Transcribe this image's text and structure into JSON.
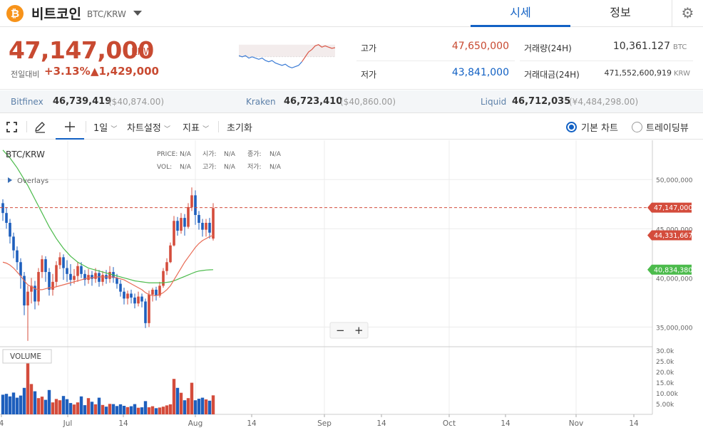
{
  "header": {
    "coin_logo": "₿",
    "coin_name": "비트코인",
    "coin_pair": "BTC/KRW",
    "tabs": [
      {
        "label": "시세"
      },
      {
        "label": "정보"
      }
    ],
    "settings_icon": "gear-icon"
  },
  "summary": {
    "price": "47,147,000",
    "unit": "KRW",
    "change_label": "전일대비",
    "change_pct": "+3.13%",
    "change_amt": "▲1,429,000",
    "high_label": "고가",
    "high": "47,650,000",
    "low_label": "저가",
    "low": "43,841,000",
    "volume_label": "거래량(24H)",
    "volume": "10,361.127",
    "volume_unit": "BTC",
    "amount_label": "거래대금(24H)",
    "amount": "471,552,600,919",
    "amount_unit": "KRW"
  },
  "exchanges": [
    {
      "name": "Bitfinex",
      "price": "46,739,419",
      "fiat": "($40,874.00)"
    },
    {
      "name": "Kraken",
      "price": "46,723,410",
      "fiat": "($40,860.00)"
    },
    {
      "name": "Liquid",
      "price": "46,712,035",
      "fiat": "(¥4,484,298.00)"
    }
  ],
  "toolbar": {
    "interval": "1일",
    "chart_settings": "차트설정",
    "indicators": "지표",
    "reset": "초기화",
    "basic_chart": "기본 차트",
    "tradingview": "트레이딩뷰"
  },
  "chart": {
    "symbol": "BTC/KRW",
    "overlays": "Overlays",
    "info": {
      "price_label": "PRICE:",
      "price": "N/A",
      "open_label": "시가:",
      "open": "N/A",
      "close_label": "종가:",
      "close": "N/A",
      "vol_label": "VOL:",
      "vol": "N/A",
      "high_label": "고가:",
      "high": "N/A",
      "low_label": "저가:",
      "low": "N/A"
    },
    "price_ticks": [
      "50,000,000",
      "45,000,000",
      "40,000,000",
      "35,000,000"
    ],
    "price_tick_values": [
      50000000,
      45000000,
      40000000,
      35000000
    ],
    "current_price_tag": "47,147,000",
    "current_price_value": 47147000,
    "ma_short_tag": "44,331,667",
    "ma_short_value": 44331667,
    "ma_long_tag": "40,834,380",
    "ma_long_value": 40834380,
    "volume_label": "VOLUME",
    "volume_ticks": [
      "30.0k",
      "25.0k",
      "20.0k",
      "15.0k",
      "10.00k",
      "5.00k"
    ],
    "volume_tick_values": [
      30000,
      25000,
      20000,
      15000,
      10000,
      5000
    ],
    "x_ticks": [
      "4",
      "Jul",
      "14",
      "Aug",
      "14",
      "Sep",
      "14",
      "Oct",
      "14",
      "Nov",
      "14"
    ],
    "zoom_minus": "−",
    "zoom_plus": "+",
    "colors": {
      "up": "#d44c3c",
      "down": "#1e5fbd",
      "ma_short": "#e86b55",
      "ma_long": "#4cbb4c",
      "current": "#d44c3c"
    }
  },
  "chart_data": {
    "type": "candlestick",
    "note_series": [
      "candles",
      "volume",
      "ma_short",
      "ma_long"
    ],
    "candles": [
      [
        47.6,
        46.6,
        48.0,
        45.8
      ],
      [
        46.6,
        45.6,
        47.2,
        45.0
      ],
      [
        45.6,
        44.2,
        46.0,
        43.5
      ],
      [
        44.2,
        42.8,
        44.6,
        42.0
      ],
      [
        42.8,
        41.6,
        43.2,
        40.8
      ],
      [
        41.6,
        40.2,
        42.0,
        38.9
      ],
      [
        40.2,
        37.2,
        40.6,
        36.2
      ],
      [
        37.2,
        38.6,
        39.2,
        33.6
      ],
      [
        38.6,
        39.2,
        40.0,
        37.4
      ],
      [
        39.2,
        37.6,
        39.7,
        36.8
      ],
      [
        37.6,
        40.6,
        41.0,
        37.2
      ],
      [
        40.6,
        41.9,
        42.3,
        40.0
      ],
      [
        41.9,
        40.6,
        42.2,
        39.6
      ],
      [
        40.6,
        38.8,
        41.0,
        38.2
      ],
      [
        38.8,
        39.6,
        40.4,
        38.2
      ],
      [
        39.6,
        41.3,
        41.7,
        39.1
      ],
      [
        41.3,
        42.1,
        42.6,
        40.9
      ],
      [
        42.1,
        41.0,
        42.4,
        39.8
      ],
      [
        41.0,
        40.4,
        41.8,
        39.6
      ],
      [
        40.4,
        39.8,
        41.4,
        39.2
      ],
      [
        39.8,
        40.2,
        40.9,
        39.4
      ],
      [
        40.2,
        41.2,
        41.6,
        39.6
      ],
      [
        41.2,
        40.4,
        41.6,
        40.0
      ],
      [
        40.4,
        39.8,
        40.8,
        39.2
      ],
      [
        39.8,
        40.3,
        40.9,
        39.4
      ],
      [
        40.3,
        39.9,
        40.7,
        39.2
      ],
      [
        39.9,
        40.5,
        41.0,
        39.5
      ],
      [
        40.5,
        39.6,
        40.8,
        39.1
      ],
      [
        39.6,
        40.3,
        40.7,
        39.2
      ],
      [
        40.3,
        39.9,
        40.8,
        39.4
      ],
      [
        39.9,
        40.6,
        41.2,
        39.5
      ],
      [
        40.6,
        40.0,
        41.1,
        39.5
      ],
      [
        40.0,
        39.4,
        40.4,
        38.9
      ],
      [
        39.4,
        38.6,
        39.8,
        38.1
      ],
      [
        38.6,
        37.9,
        39.0,
        37.3
      ],
      [
        37.9,
        38.4,
        38.7,
        37.3
      ],
      [
        38.4,
        38.0,
        38.8,
        37.4
      ],
      [
        38.0,
        37.4,
        38.4,
        36.9
      ],
      [
        37.4,
        38.1,
        38.6,
        37.1
      ],
      [
        38.1,
        37.6,
        38.4,
        37.0
      ],
      [
        37.6,
        35.4,
        37.9,
        34.9
      ],
      [
        35.4,
        38.3,
        38.7,
        35.0
      ],
      [
        38.3,
        38.8,
        39.0,
        37.6
      ],
      [
        38.8,
        38.2,
        39.1,
        37.7
      ],
      [
        38.2,
        39.2,
        39.6,
        38.0
      ],
      [
        39.2,
        40.7,
        41.0,
        39.0
      ],
      [
        40.7,
        41.6,
        42.0,
        40.3
      ],
      [
        41.6,
        43.3,
        43.6,
        41.5
      ],
      [
        43.3,
        45.8,
        46.3,
        43.2
      ],
      [
        45.8,
        44.8,
        46.2,
        44.3
      ],
      [
        44.8,
        46.1,
        46.6,
        44.5
      ],
      [
        46.1,
        45.2,
        46.5,
        44.3
      ],
      [
        45.2,
        47.2,
        47.6,
        45.0
      ],
      [
        47.2,
        48.4,
        49.2,
        46.8
      ],
      [
        48.4,
        46.4,
        48.9,
        45.4
      ],
      [
        46.4,
        45.6,
        46.8,
        44.9
      ],
      [
        45.6,
        44.9,
        46.0,
        44.2
      ],
      [
        44.9,
        45.6,
        46.0,
        44.2
      ],
      [
        45.6,
        44.6,
        46.1,
        44.0
      ],
      [
        44.0,
        47.1,
        47.6,
        43.8
      ]
    ],
    "volume": [
      9.2,
      9.6,
      8.4,
      10.2,
      7.8,
      8.8,
      12.4,
      29.4,
      14.2,
      10.8,
      7.6,
      8.3,
      6.8,
      11.4,
      5.6,
      7.2,
      6.6,
      8.6,
      7.1,
      5.3,
      4.6,
      5.6,
      8.4,
      4.3,
      7.6,
      5.9,
      4.7,
      7.8,
      4.4,
      3.6,
      4.9,
      4.8,
      3.9,
      4.7,
      4.0,
      3.4,
      3.8,
      4.8,
      3.1,
      3.3,
      6.2,
      3.3,
      3.8,
      2.9,
      3.2,
      3.6,
      4.2,
      4.7,
      16.6,
      12.4,
      10.1,
      6.6,
      7.6,
      14.8,
      6.6,
      7.3,
      7.8,
      7.0,
      6.4,
      8.9
    ],
    "ma_short": [
      41.6,
      41.5,
      41.3,
      41.0,
      40.6,
      40.2,
      39.7,
      39.3,
      39.1,
      38.9,
      38.8,
      38.8,
      38.9,
      39.0,
      39.0,
      39.1,
      39.2,
      39.3,
      39.4,
      39.5,
      39.6,
      39.7,
      39.8,
      39.9,
      40.0,
      40.0,
      40.1,
      40.1,
      40.1,
      40.1,
      40.1,
      40.1,
      40.0,
      39.9,
      39.8,
      39.6,
      39.4,
      39.2,
      39.0,
      38.8,
      38.5,
      38.3,
      38.2,
      38.2,
      38.3,
      38.5,
      38.8,
      39.2,
      39.8,
      40.4,
      41.0,
      41.6,
      42.1,
      42.6,
      43.1,
      43.5,
      43.8,
      44.0,
      44.2,
      44.33
    ],
    "ma_long": [
      53.0,
      52.6,
      52.2,
      51.7,
      51.2,
      50.6,
      50.0,
      49.4,
      48.7,
      48.0,
      47.3,
      46.6,
      45.9,
      45.2,
      44.6,
      44.0,
      43.5,
      43.0,
      42.6,
      42.2,
      41.9,
      41.6,
      41.4,
      41.2,
      41.0,
      40.9,
      40.8,
      40.7,
      40.6,
      40.5,
      40.4,
      40.3,
      40.2,
      40.1,
      40.0,
      39.9,
      39.8,
      39.7,
      39.65,
      39.6,
      39.55,
      39.5,
      39.5,
      39.5,
      39.5,
      39.5,
      39.55,
      39.6,
      39.7,
      39.85,
      40.0,
      40.15,
      40.3,
      40.45,
      40.6,
      40.7,
      40.75,
      40.8,
      40.82,
      40.834
    ],
    "units": {
      "price": "million KRW",
      "volume": "thousand"
    },
    "ylim": [
      33.0,
      54.0
    ],
    "volume_ylim": [
      0,
      31
    ],
    "mini_trend": [
      47.0,
      46.9,
      47.0,
      46.8,
      46.9,
      46.8,
      46.7,
      46.8,
      46.6,
      46.5,
      46.6,
      46.4,
      46.3,
      46.2,
      46.3,
      46.1,
      46.0,
      46.1,
      46.2,
      46.5,
      46.9,
      47.3,
      47.5,
      47.8,
      47.9,
      47.7,
      47.8,
      47.7,
      47.6,
      47.65
    ]
  }
}
